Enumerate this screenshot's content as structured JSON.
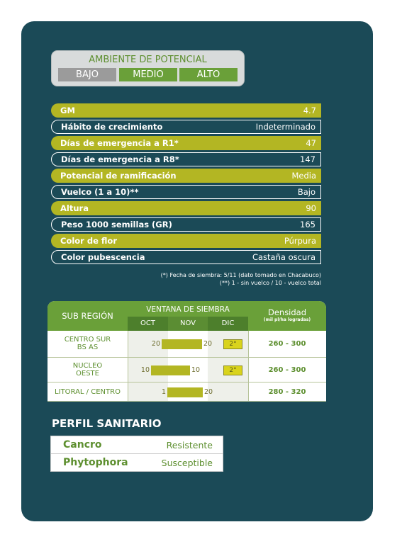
{
  "ambiente": {
    "title": "AMBIENTE DE POTENCIAL",
    "levels": [
      "BAJO",
      "MEDIO",
      "ALTO"
    ]
  },
  "specs": [
    {
      "label": "GM",
      "value": "4.7"
    },
    {
      "label": "Hábito de crecimiento",
      "value": "Indeterminado"
    },
    {
      "label": "Días de emergencia a R1*",
      "value": "47"
    },
    {
      "label": "Días de emergencia a R8*",
      "value": "147"
    },
    {
      "label": "Potencial de ramificación",
      "value": "Media"
    },
    {
      "label": "Vuelco (1 a 10)**",
      "value": "Bajo"
    },
    {
      "label": "Altura",
      "value": "90"
    },
    {
      "label": "Peso 1000 semillas (GR)",
      "value": "165"
    },
    {
      "label": "Color de flor",
      "value": "Púrpura"
    },
    {
      "label": "Color pubescencia",
      "value": "Castaña oscura"
    }
  ],
  "footnotes": [
    "(*) Fecha de siembra: 5/11 (dato tomado en Chacabuco)",
    "(**) 1 - sin vuelco / 10 - vuelco total"
  ],
  "siembra": {
    "headers": {
      "region": "SUB REGIÓN",
      "window": "VENTANA DE SIEMBRA",
      "density": "Densidad",
      "density_unit": "(mil pl/ha logradas)"
    },
    "months": [
      "OCT",
      "NOV",
      "DIC"
    ],
    "rows": [
      {
        "region": [
          "CENTRO SUR",
          "BS AS"
        ],
        "start": "20",
        "end": "20",
        "dic": "2°",
        "density": "260 - 300"
      },
      {
        "region": [
          "NUCLEO",
          "OESTE"
        ],
        "start": "10",
        "end": "10",
        "dic": "2°",
        "density": "260 - 300"
      },
      {
        "region": [
          "LITORAL / CENTRO"
        ],
        "start": "1",
        "end": "20",
        "dic": null,
        "density": "280 - 320"
      }
    ]
  },
  "sanitario": {
    "title": "PERFIL SANITARIO",
    "rows": [
      {
        "disease": "Cancro",
        "status": "Resistente"
      },
      {
        "disease": "Phytophora",
        "status": "Susceptible"
      }
    ]
  }
}
